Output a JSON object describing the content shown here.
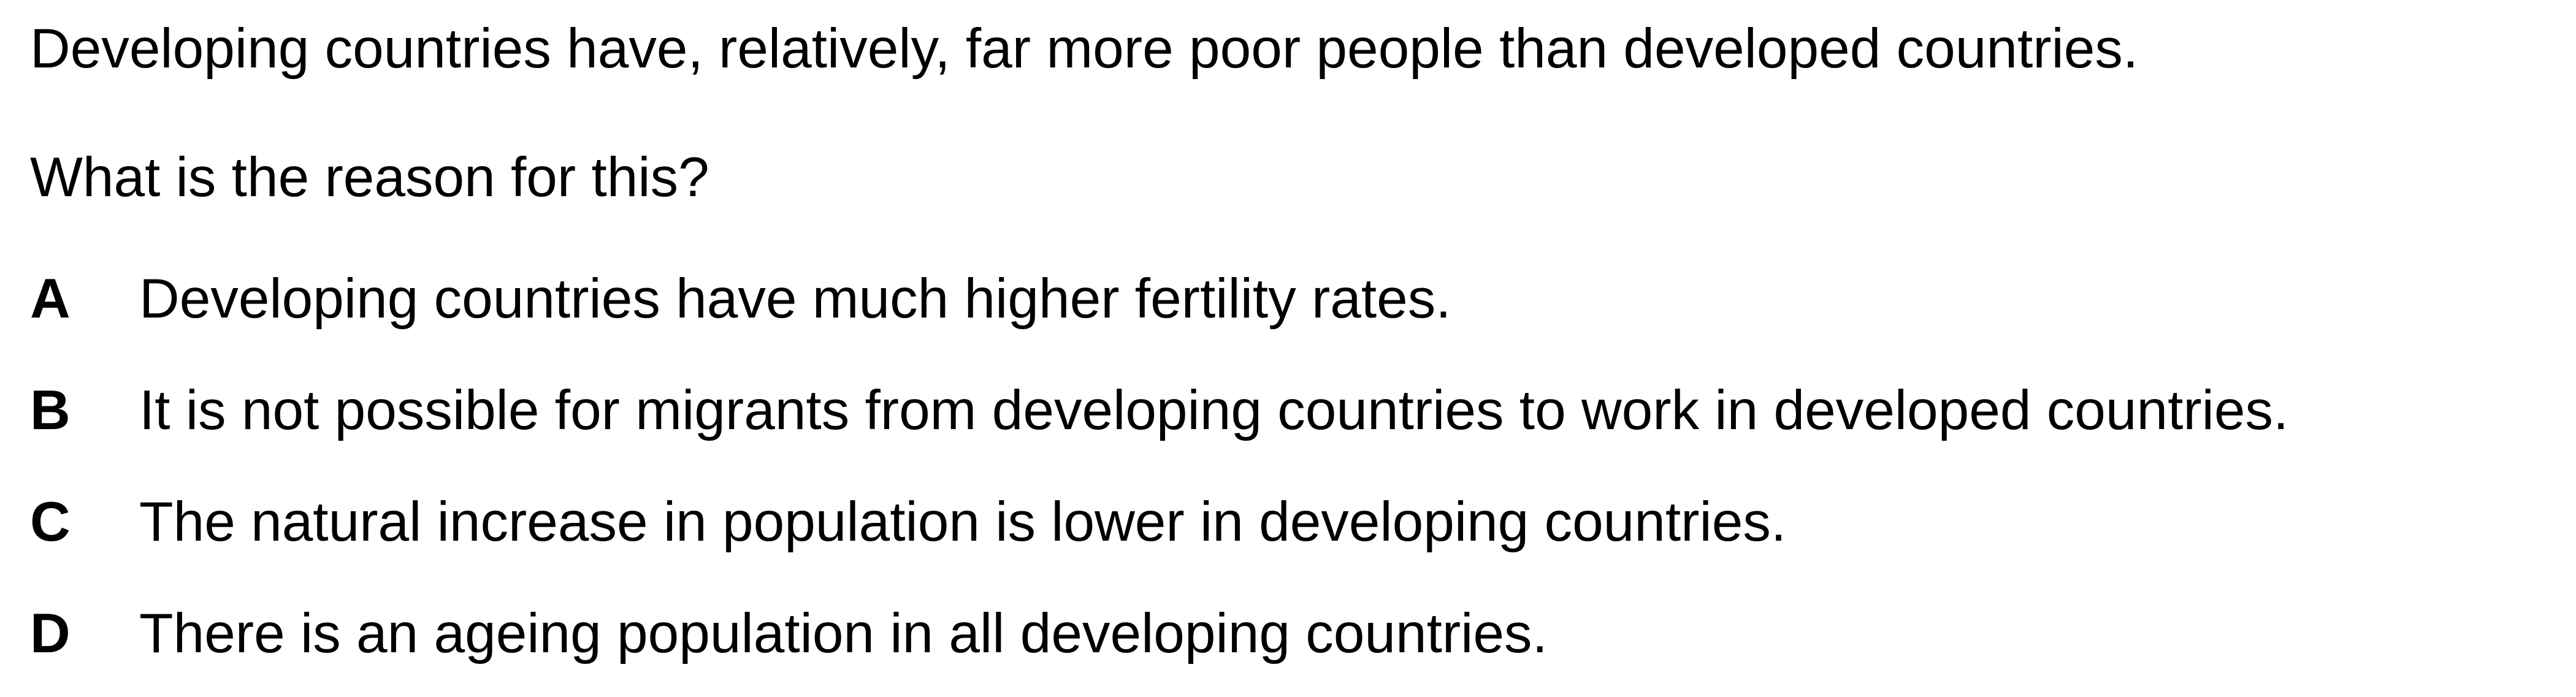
{
  "question": {
    "stem": "Developing countries have, relatively, far more poor people than developed countries.",
    "prompt": "What is the reason for this?",
    "options": [
      {
        "letter": "A",
        "text": "Developing countries have much higher fertility rates."
      },
      {
        "letter": "B",
        "text": "It is not possible for migrants from developing countries to work in developed countries."
      },
      {
        "letter": "C",
        "text": "The natural increase in population is lower in developing countries."
      },
      {
        "letter": "D",
        "text": "There is an ageing population in all developing countries."
      }
    ]
  }
}
